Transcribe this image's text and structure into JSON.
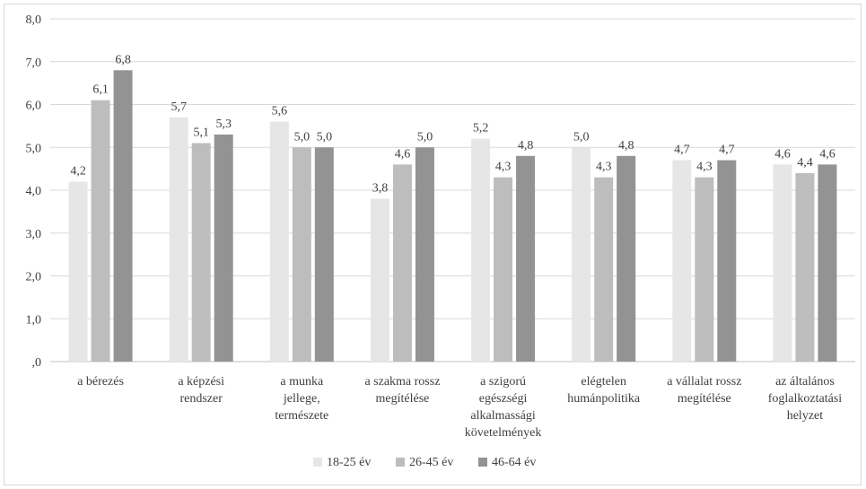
{
  "chart_data": {
    "type": "bar",
    "categories": [
      [
        "a bérezés"
      ],
      [
        "a képzési",
        "rendszer"
      ],
      [
        "a munka",
        "jellege,",
        "természete"
      ],
      [
        "a szakma rossz",
        "megítélése"
      ],
      [
        "a szigorú",
        "egészségi",
        "alkalmassági",
        "követelmények"
      ],
      [
        "elégtelen",
        "humánpolitika"
      ],
      [
        "a vállalat rossz",
        "megítélése"
      ],
      [
        "az általános",
        "foglalkoztatási",
        "helyzet"
      ]
    ],
    "series": [
      {
        "name": "18-25 év",
        "color": "#e6e6e6",
        "values": [
          4.2,
          5.7,
          5.6,
          3.8,
          5.2,
          5.0,
          4.7,
          4.6
        ],
        "labels": [
          "4,2",
          "5,7",
          "5,6",
          "3,8",
          "5,2",
          "5,0",
          "4,7",
          "4,6"
        ]
      },
      {
        "name": "26-45 év",
        "color": "#bdbdbd",
        "values": [
          6.1,
          5.1,
          5.0,
          4.6,
          4.3,
          4.3,
          4.3,
          4.4
        ],
        "labels": [
          "6,1",
          "5,1",
          "5,0",
          "4,6",
          "4,3",
          "4,3",
          "4,3",
          "4,4"
        ]
      },
      {
        "name": "46-64 év",
        "color": "#939393",
        "values": [
          6.8,
          5.3,
          5.0,
          5.0,
          4.8,
          4.8,
          4.7,
          4.6
        ],
        "labels": [
          "6,8",
          "5,3",
          "5,0",
          "5,0",
          "4,8",
          "4,8",
          "4,7",
          "4,6"
        ]
      }
    ],
    "ylim": [
      0,
      8
    ],
    "yticks": [
      ",0",
      "1,0",
      "2,0",
      "3,0",
      "4,0",
      "5,0",
      "6,0",
      "7,0",
      "8,0"
    ],
    "grid": true,
    "legend": "bottom"
  }
}
